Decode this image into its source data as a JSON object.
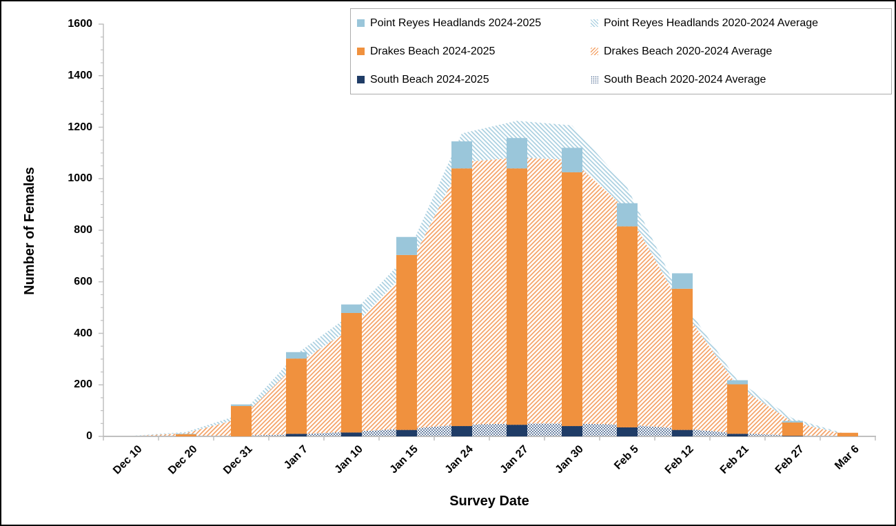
{
  "axes": {
    "y_title": "Number of Females",
    "x_title": "Survey Date",
    "y_ticks": [
      0,
      200,
      400,
      600,
      800,
      1000,
      1200,
      1400,
      1600
    ],
    "y_minor_step": 50,
    "axis_color": "#bfbfbf"
  },
  "legend": {
    "items": [
      {
        "label": "Point Reyes Headlands 2024-2025",
        "swatch": "prh-solid"
      },
      {
        "label": "Point Reyes Headlands 2020-2024 Average",
        "swatch": "prh-hatch"
      },
      {
        "label": "Drakes Beach 2024-2025",
        "swatch": "db-solid"
      },
      {
        "label": "Drakes Beach 2020-2024 Average",
        "swatch": "db-hatch"
      },
      {
        "label": "South Beach 2024-2025",
        "swatch": "sb-solid"
      },
      {
        "label": "South Beach 2020-2024 Average",
        "swatch": "sb-dots"
      }
    ]
  },
  "colors": {
    "prh_solid": "#9ac6da",
    "db_solid": "#f0913e",
    "sb_solid": "#1f3c66",
    "prh_hatch_line": "#a9cfe0",
    "db_hatch_line": "#f4a063",
    "sb_dot": "#2f5180",
    "axis": "#bfbfbf"
  },
  "chart_data": {
    "type": "bar",
    "subtype": "stacked-bars-2024-2025 overlaid on stacked-hatched-areas-2020-2024-average",
    "title": "",
    "xlabel": "Survey Date",
    "ylabel": "Number of Females",
    "ylim": [
      0,
      1600
    ],
    "grid": false,
    "legend_position": "top-right",
    "categories": [
      "Dec 10",
      "Dec 20",
      "Dec 31",
      "Jan 7",
      "Jan 10",
      "Jan 15",
      "Jan 24",
      "Jan 27",
      "Jan 30",
      "Feb 5",
      "Feb 12",
      "Feb 21",
      "Feb 27",
      "Mar 6"
    ],
    "series": [
      {
        "name": "South Beach 2024-2025",
        "render": "bar",
        "stack": "current-season",
        "values": [
          0,
          0,
          0,
          10,
          15,
          25,
          40,
          45,
          40,
          35,
          25,
          10,
          2,
          0
        ]
      },
      {
        "name": "Drakes Beach 2024-2025",
        "render": "bar",
        "stack": "current-season",
        "values": [
          0,
          8,
          118,
          292,
          464,
          679,
          1000,
          995,
          985,
          780,
          548,
          192,
          52,
          14
        ]
      },
      {
        "name": "Point Reyes Headlands 2024-2025",
        "render": "bar",
        "stack": "current-season",
        "values": [
          0,
          2,
          6,
          25,
          33,
          70,
          105,
          118,
          95,
          90,
          60,
          16,
          6,
          0
        ]
      },
      {
        "name": "South Beach 2020-2024 Average",
        "render": "area",
        "stack": "average",
        "values": [
          0,
          1,
          3,
          8,
          18,
          30,
          45,
          50,
          50,
          45,
          30,
          12,
          4,
          1
        ]
      },
      {
        "name": "Drakes Beach 2020-2024 Average",
        "render": "area",
        "stack": "average",
        "values": [
          1,
          12,
          67,
          272,
          402,
          610,
          1019,
          1032,
          1023,
          832,
          468,
          183,
          52,
          4
        ]
      },
      {
        "name": "Point Reyes Headlands 2020-2024 Average",
        "render": "area",
        "stack": "average",
        "values": [
          1,
          4,
          16,
          40,
          55,
          60,
          112,
          143,
          134,
          89,
          30,
          22,
          14,
          2
        ]
      }
    ]
  }
}
